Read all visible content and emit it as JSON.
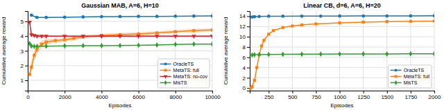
{
  "chart_data": [
    {
      "type": "line",
      "title": "Gaussian MAB, A=6, H=10",
      "x_label": "Episodes",
      "y_label": "Cumulative average reward",
      "xlim": [
        0,
        10000
      ],
      "ylim": [
        0.3,
        5.7
      ],
      "xticks": [
        0,
        2000,
        4000,
        6000,
        8000,
        10000
      ],
      "yticks": [
        1,
        2,
        3,
        4,
        5
      ],
      "grid": true,
      "legend": "lower right",
      "series": [
        {
          "name": "OracleTS",
          "color": "#1f77b4",
          "marker": "circle",
          "x": [
            200,
            500,
            1000,
            2000,
            3000,
            4000,
            5000,
            6000,
            7000,
            8000,
            9000,
            10000
          ],
          "values": [
            5.42,
            5.27,
            5.27,
            5.28,
            5.3,
            5.32,
            5.33,
            5.34,
            5.34,
            5.35,
            5.36,
            5.37
          ],
          "error": [
            0.05,
            0.03,
            0.03,
            0.02,
            0.02,
            0.02,
            0.02,
            0.02,
            0.02,
            0.02,
            0.02,
            0.02
          ]
        },
        {
          "name": "MetaTS: full",
          "color": "#ff7f0e",
          "marker": "square",
          "x": [
            100,
            200,
            350,
            500,
            750,
            1000,
            1500,
            2000,
            2500,
            3000,
            4000,
            5000,
            6000,
            7000,
            8000,
            9000,
            10000
          ],
          "values": [
            1.4,
            1.9,
            2.7,
            3.1,
            3.45,
            3.6,
            3.7,
            3.75,
            3.85,
            3.95,
            4.05,
            4.1,
            4.15,
            4.22,
            4.3,
            4.37,
            4.42
          ],
          "error": [
            0.35,
            0.4,
            0.35,
            0.3,
            0.25,
            0.2,
            0.15,
            0.13,
            0.13,
            0.12,
            0.12,
            0.12,
            0.12,
            0.12,
            0.12,
            0.12,
            0.12
          ]
        },
        {
          "name": "MetaTS: no-cov",
          "color": "#d62728",
          "marker": "triangle-down",
          "x": [
            100,
            200,
            350,
            500,
            750,
            1000,
            2000,
            3000,
            4000,
            5000,
            6000,
            7000,
            8000,
            9000,
            10000
          ],
          "values": [
            4.95,
            4.1,
            4.05,
            4.0,
            4.0,
            4.0,
            4.0,
            4.0,
            4.0,
            4.0,
            4.0,
            4.0,
            4.0,
            4.0,
            4.0
          ],
          "error": [
            0.15,
            0.1,
            0.08,
            0.06,
            0.05,
            0.05,
            0.04,
            0.04,
            0.04,
            0.04,
            0.04,
            0.04,
            0.04,
            0.04,
            0.04
          ]
        },
        {
          "name": "MisTS",
          "color": "#2ca02c",
          "marker": "diamond",
          "x": [
            100,
            200,
            350,
            500,
            1000,
            2000,
            3000,
            4000,
            5000,
            6000,
            7000,
            8000,
            9000,
            10000
          ],
          "values": [
            3.5,
            3.33,
            3.3,
            3.31,
            3.32,
            3.34,
            3.35,
            3.35,
            3.36,
            3.38,
            3.4,
            3.44,
            3.46,
            3.46
          ]
        }
      ]
    },
    {
      "type": "line",
      "title": "Linear CB, d=6, A=6, H=20",
      "x_label": "Episodes",
      "y_label": "Cumulative average reward",
      "xlim": [
        50,
        2000
      ],
      "ylim": [
        -0.5,
        15.0
      ],
      "xticks": [
        250,
        500,
        750,
        1000,
        1250,
        1500,
        1750,
        2000
      ],
      "yticks": [
        0,
        2,
        4,
        6,
        8,
        10,
        12,
        14
      ],
      "grid": true,
      "legend": "lower right",
      "series": [
        {
          "name": "OracleTS",
          "color": "#1f77b4",
          "marker": "circle",
          "x": [
            75,
            100,
            150,
            250,
            400,
            600,
            800,
            1000,
            1250,
            1500,
            1750,
            2000
          ],
          "values": [
            13.85,
            13.9,
            13.95,
            14.0,
            14.0,
            14.02,
            14.02,
            14.03,
            14.05,
            14.05,
            14.07,
            14.08
          ]
        },
        {
          "name": "MetaTS: full",
          "color": "#ff7f0e",
          "marker": "square",
          "x": [
            60,
            75,
            100,
            125,
            150,
            175,
            200,
            250,
            300,
            400,
            500,
            600,
            750,
            1000,
            1250,
            1500,
            1750,
            2000
          ],
          "values": [
            0.05,
            0.3,
            1.5,
            4.0,
            6.5,
            8.2,
            9.3,
            10.5,
            11.2,
            11.8,
            12.1,
            12.3,
            12.5,
            12.7,
            12.85,
            12.95,
            13.0,
            13.05
          ]
        },
        {
          "name": "MisTS",
          "color": "#2ca02c",
          "marker": "diamond",
          "x": [
            75,
            100,
            150,
            250,
            400,
            600,
            800,
            1000,
            1250,
            1500,
            1750,
            2000
          ],
          "values": [
            6.45,
            6.5,
            6.52,
            6.55,
            6.58,
            6.6,
            6.62,
            6.63,
            6.65,
            6.65,
            6.67,
            6.68
          ]
        }
      ]
    }
  ]
}
